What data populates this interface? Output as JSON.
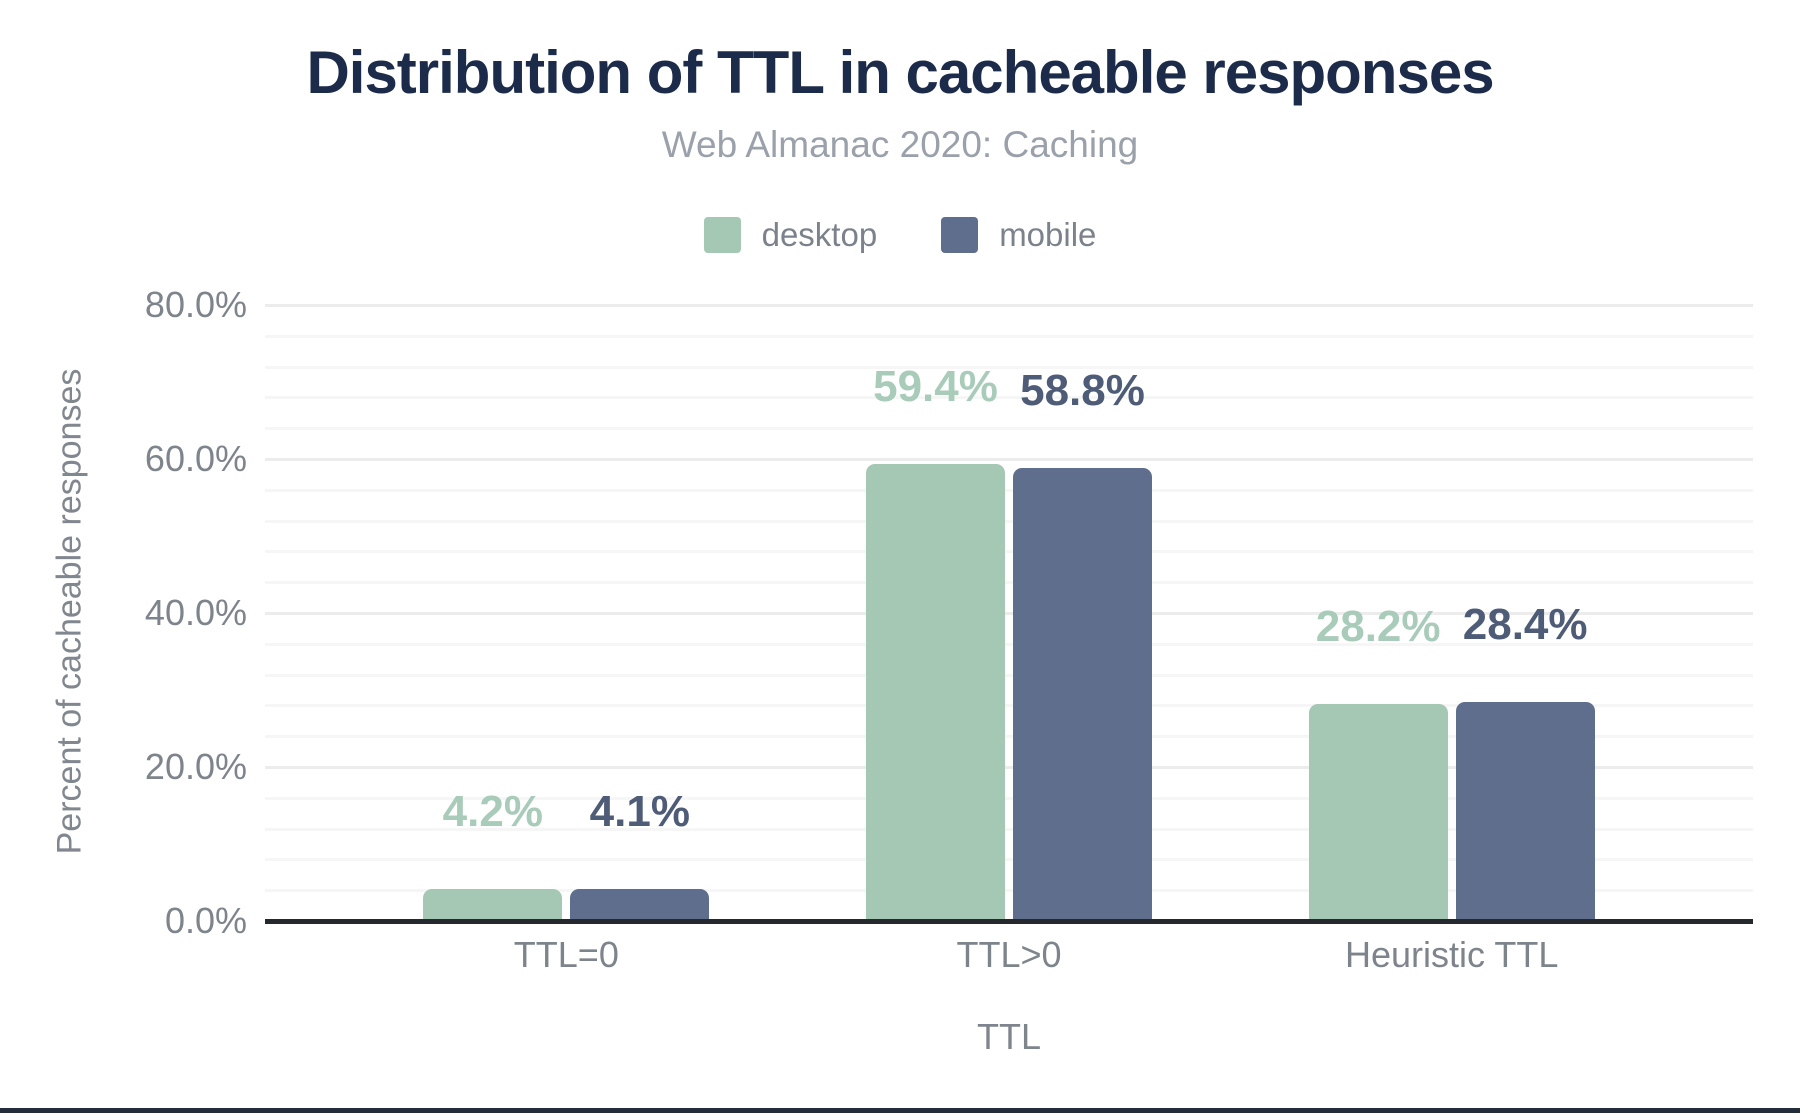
{
  "page": {
    "background_color": "#ffffff",
    "footer_bar_color": "#232d3b"
  },
  "chart_data": {
    "type": "bar",
    "title": "Distribution of TTL in cacheable responses",
    "subtitle": "Web Almanac 2020: Caching",
    "categories": [
      "TTL=0",
      "TTL>0",
      "Heuristic TTL"
    ],
    "series": [
      {
        "name": "desktop",
        "color": "#a5c8b5",
        "label_color": "#a9cbba",
        "values": [
          4.2,
          59.4,
          28.2
        ]
      },
      {
        "name": "mobile",
        "color": "#5f6e8c",
        "label_color": "#4e5c77",
        "values": [
          4.1,
          58.8,
          28.4
        ]
      }
    ],
    "data_labels": [
      [
        "4.2%",
        "59.4%",
        "28.2%"
      ],
      [
        "4.1%",
        "58.8%",
        "28.4%"
      ]
    ],
    "xlabel": "TTL",
    "ylabel": "Percent of cacheable responses",
    "ylim": [
      0,
      80
    ],
    "yticks": [
      {
        "value": 0,
        "label": "0.0%"
      },
      {
        "value": 20,
        "label": "20.0%"
      },
      {
        "value": 40,
        "label": "40.0%"
      },
      {
        "value": 60,
        "label": "60.0%"
      },
      {
        "value": 80,
        "label": "80.0%"
      }
    ],
    "grid": {
      "visible": true,
      "major_step": 20,
      "minor_step": 4,
      "legend_position": "top"
    },
    "title_color": "#1c2b4a",
    "subtitle_color": "#9aa1ab",
    "axis_text_color": "#7e848c",
    "baseline_color": "#25292e"
  }
}
